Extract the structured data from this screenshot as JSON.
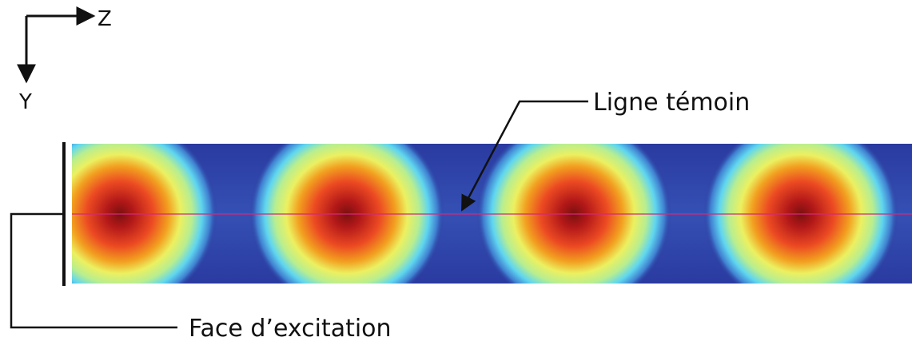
{
  "axes": {
    "z_label": "Z",
    "y_label": "Y"
  },
  "annotations": {
    "probe_line_label": "Ligne témoin",
    "excitation_face_label": "Face d’excitation"
  },
  "field_map": {
    "mode_count": 4,
    "colormap": [
      "#2a3a9a",
      "#3f7fd0",
      "#5fd6f0",
      "#ecf060",
      "#f2c020",
      "#ec4a22",
      "#b21818",
      "#7a1010"
    ],
    "probe_line_color": "#d12a7a",
    "background_color": "#2a3a9a"
  }
}
